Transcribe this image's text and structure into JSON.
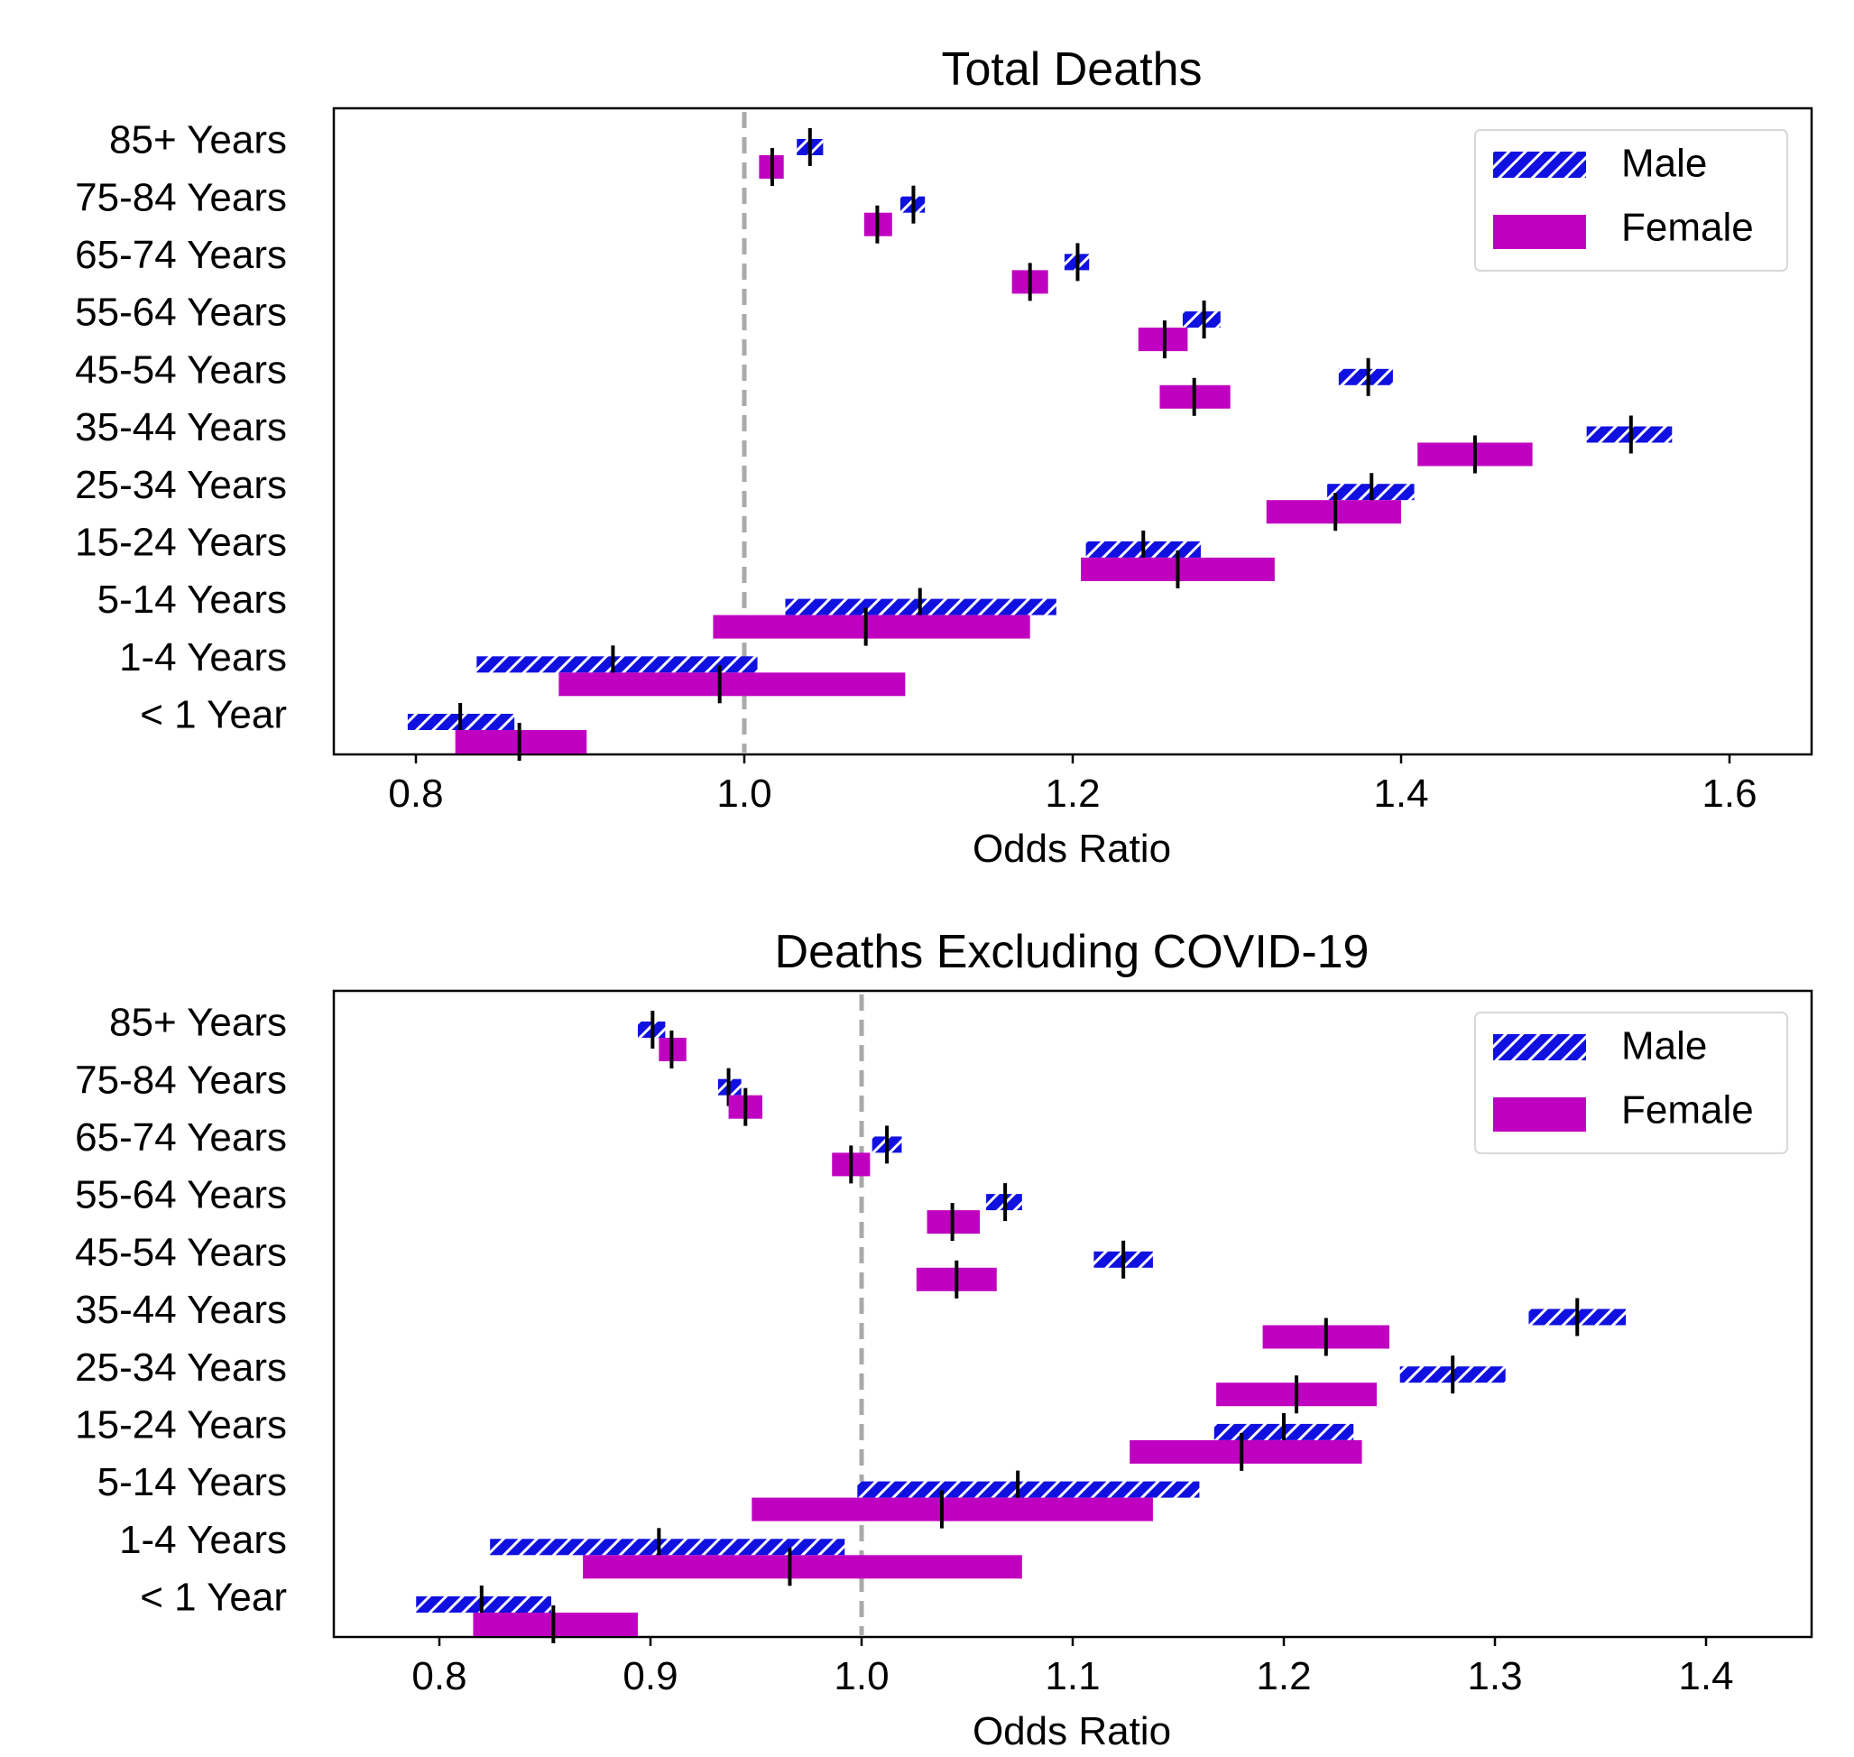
{
  "chart_data": [
    {
      "type": "bar",
      "title": "Total Deaths",
      "xlabel": "Odds Ratio",
      "ylabel": "",
      "xlim": [
        0.75,
        1.65
      ],
      "xticks": [
        "0.8",
        "1.0",
        "1.2",
        "1.4",
        "1.6"
      ],
      "xtick_values": [
        0.8,
        1.0,
        1.2,
        1.4,
        1.6
      ],
      "reference_line": 1.0,
      "legend_position": "upper right",
      "categories": [
        "85+ Years",
        "75-84 Years",
        "65-74 Years",
        "55-64 Years",
        "45-54 Years",
        "35-44 Years",
        "25-34 Years",
        "15-24 Years",
        "5-14 Years",
        "1-4 Years",
        "< 1 Year"
      ],
      "series": [
        {
          "name": "Male",
          "color": "#1010e0",
          "pattern": "hatched",
          "estimate": [
            1.04,
            1.103,
            1.203,
            1.28,
            1.38,
            1.54,
            1.382,
            1.243,
            1.107,
            0.92,
            0.827
          ],
          "ci_low": [
            1.032,
            1.095,
            1.195,
            1.267,
            1.362,
            1.513,
            1.355,
            1.208,
            1.025,
            0.837,
            0.795
          ],
          "ci_high": [
            1.048,
            1.11,
            1.21,
            1.29,
            1.395,
            1.565,
            1.408,
            1.278,
            1.19,
            1.008,
            0.86
          ]
        },
        {
          "name": "Female",
          "color": "#c000c0",
          "pattern": "solid",
          "estimate": [
            1.017,
            1.081,
            1.174,
            1.256,
            1.274,
            1.445,
            1.36,
            1.264,
            1.074,
            0.985,
            0.863
          ],
          "ci_low": [
            1.009,
            1.073,
            1.163,
            1.24,
            1.253,
            1.41,
            1.318,
            1.205,
            0.981,
            0.887,
            0.824
          ],
          "ci_high": [
            1.024,
            1.09,
            1.185,
            1.27,
            1.296,
            1.48,
            1.4,
            1.323,
            1.174,
            1.098,
            0.904
          ]
        }
      ]
    },
    {
      "type": "bar",
      "title": "Deaths Excluding COVID-19",
      "xlabel": "Odds Ratio",
      "ylabel": "",
      "xlim": [
        0.75,
        1.45
      ],
      "xticks": [
        "0.8",
        "0.9",
        "1.0",
        "1.1",
        "1.2",
        "1.3",
        "1.4"
      ],
      "xtick_values": [
        0.8,
        0.9,
        1.0,
        1.1,
        1.2,
        1.3,
        1.4
      ],
      "reference_line": 1.0,
      "legend_position": "upper right",
      "categories": [
        "85+ Years",
        "75-84 Years",
        "65-74 Years",
        "55-64 Years",
        "45-54 Years",
        "35-44 Years",
        "25-34 Years",
        "15-24 Years",
        "5-14 Years",
        "1-4 Years",
        "< 1 Year"
      ],
      "series": [
        {
          "name": "Male",
          "color": "#1010e0",
          "pattern": "hatched",
          "estimate": [
            0.901,
            0.937,
            1.012,
            1.068,
            1.124,
            1.339,
            1.28,
            1.2,
            1.074,
            0.904,
            0.82
          ],
          "ci_low": [
            0.894,
            0.932,
            1.005,
            1.059,
            1.11,
            1.316,
            1.255,
            1.167,
            0.998,
            0.824,
            0.789
          ],
          "ci_high": [
            0.907,
            0.943,
            1.019,
            1.076,
            1.138,
            1.362,
            1.305,
            1.233,
            1.16,
            0.992,
            0.853
          ]
        },
        {
          "name": "Female",
          "color": "#c000c0",
          "pattern": "solid",
          "estimate": [
            0.91,
            0.945,
            0.995,
            1.043,
            1.045,
            1.22,
            1.206,
            1.18,
            1.038,
            0.966,
            0.854
          ],
          "ci_low": [
            0.904,
            0.937,
            0.986,
            1.031,
            1.026,
            1.19,
            1.168,
            1.127,
            0.948,
            0.868,
            0.816
          ],
          "ci_high": [
            0.917,
            0.953,
            1.004,
            1.056,
            1.064,
            1.25,
            1.244,
            1.237,
            1.138,
            1.076,
            0.894
          ]
        }
      ]
    }
  ]
}
